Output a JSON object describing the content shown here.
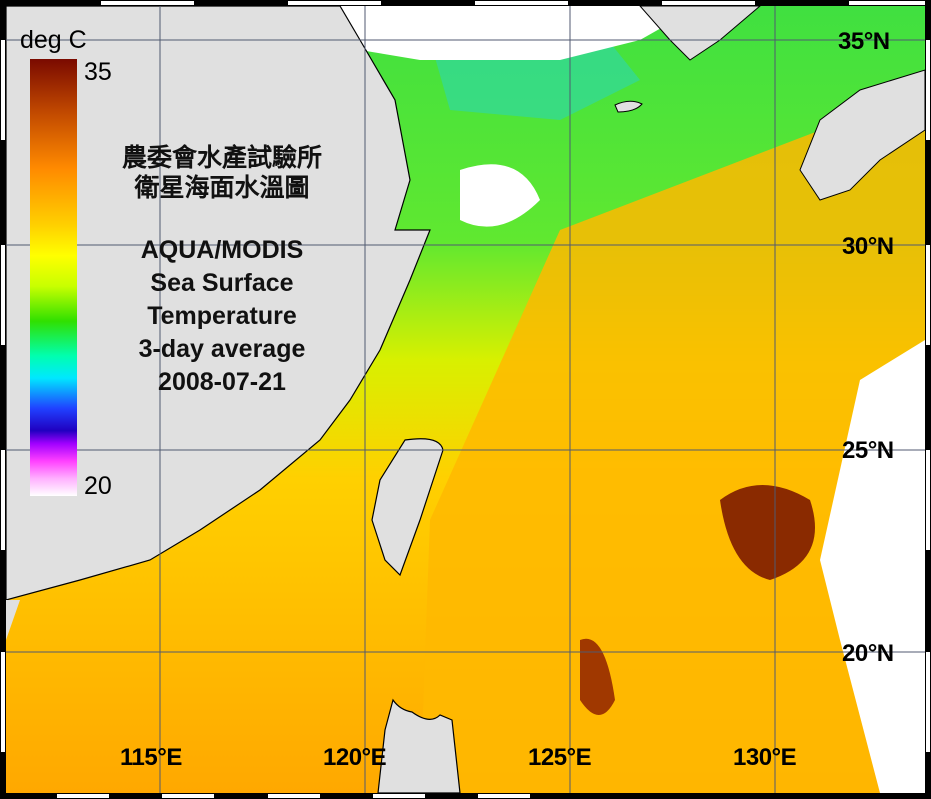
{
  "title_zh": [
    "農委會水產試驗所",
    "衛星海面水溫圖"
  ],
  "title_en": [
    "AQUA/MODIS",
    "Sea Surface",
    "Temperature",
    "3-day average",
    "2008-07-21"
  ],
  "colorbar": {
    "unit": "deg C",
    "max": "35",
    "min": "20",
    "colors": [
      "#7a0a00",
      "#ff8a00",
      "#ffff00",
      "#30e000",
      "#00e8ff",
      "#2000c0",
      "#ff40ff",
      "#ffffff"
    ]
  },
  "lat_labels": [
    "35°N",
    "30°N",
    "25°N",
    "20°N"
  ],
  "lon_labels": [
    "115°E",
    "120°E",
    "125°E",
    "130°E"
  ],
  "colors": {
    "land": "#e0e0e0",
    "no_data": "#ffffff",
    "grid": "#505a70",
    "frame": "#000000"
  }
}
